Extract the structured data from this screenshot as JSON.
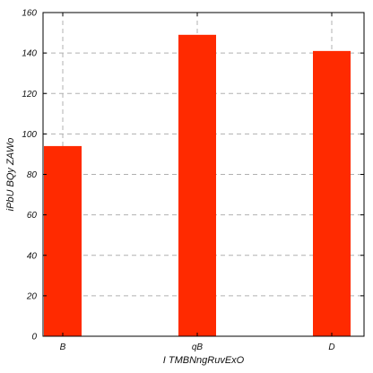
{
  "chart_data": {
    "type": "bar",
    "categories": [
      "B",
      "qB",
      "D"
    ],
    "values": [
      94,
      149,
      141
    ],
    "xlabel": "I TMBNngRuvExO",
    "ylabel": "iPbU BQy ZAWo",
    "ylim": [
      0,
      160
    ],
    "yticks": [
      0,
      20,
      40,
      60,
      80,
      100,
      120,
      140,
      160
    ],
    "grid": true,
    "bar_color": "#ff2a00",
    "grid_color": "#b0b0b0"
  }
}
